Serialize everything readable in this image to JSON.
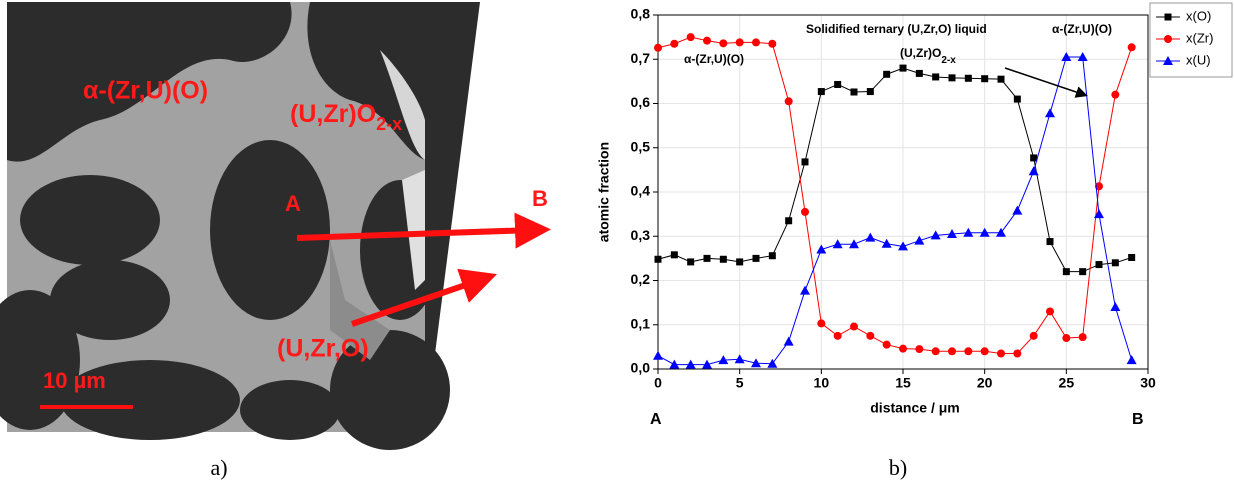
{
  "panel_a": {
    "labels": {
      "phase_alpha": "α-(Zr,U)(O)",
      "phase_oxide": {
        "main": "(U,Zr)O",
        "sub": "2-x"
      },
      "point_a": "A",
      "point_b": "B",
      "liquid": "(U,Zr,O)",
      "scale_bar": "10 µm"
    },
    "caption": "a)"
  },
  "chart_data": {
    "type": "line",
    "caption": "b)",
    "xlabel": "distance / μm",
    "ylabel": "atomic fraction",
    "x": [
      0,
      1,
      2,
      3,
      4,
      5,
      6,
      7,
      8,
      9,
      10,
      11,
      12,
      13,
      14,
      15,
      16,
      17,
      18,
      19,
      20,
      21,
      22,
      23,
      24,
      25,
      26,
      27,
      28,
      29
    ],
    "series": [
      {
        "name": "x(O)",
        "color": "#000000",
        "marker": "square",
        "values": [
          0.248,
          0.258,
          0.242,
          0.25,
          0.248,
          0.242,
          0.25,
          0.256,
          0.335,
          0.468,
          0.627,
          0.643,
          0.626,
          0.627,
          0.666,
          0.68,
          0.668,
          0.66,
          0.658,
          0.657,
          0.656,
          0.655,
          0.61,
          0.477,
          0.288,
          0.22,
          0.22,
          0.236,
          0.24,
          0.252
        ]
      },
      {
        "name": "x(Zr)",
        "color": "#ff0000",
        "marker": "circle",
        "values": [
          0.726,
          0.735,
          0.75,
          0.742,
          0.736,
          0.738,
          0.738,
          0.735,
          0.605,
          0.355,
          0.103,
          0.075,
          0.096,
          0.075,
          0.055,
          0.046,
          0.045,
          0.04,
          0.04,
          0.04,
          0.04,
          0.035,
          0.035,
          0.075,
          0.13,
          0.07,
          0.072,
          0.413,
          0.62,
          0.727
        ]
      },
      {
        "name": "x(U)",
        "color": "#0000ff",
        "marker": "triangle",
        "values": [
          0.03,
          0.01,
          0.01,
          0.01,
          0.02,
          0.022,
          0.013,
          0.012,
          0.062,
          0.177,
          0.27,
          0.282,
          0.282,
          0.297,
          0.283,
          0.277,
          0.29,
          0.302,
          0.305,
          0.308,
          0.308,
          0.308,
          0.358,
          0.447,
          0.578,
          0.705,
          0.705,
          0.35,
          0.14,
          0.02
        ]
      }
    ],
    "xlim": [
      0,
      30
    ],
    "xticks": [
      0,
      5,
      10,
      15,
      20,
      25,
      30
    ],
    "ylim": [
      0,
      0.8
    ],
    "yticks": [
      {
        "value": 0,
        "label": "0,0"
      },
      {
        "value": 0.1,
        "label": "0,1"
      },
      {
        "value": 0.2,
        "label": "0,2"
      },
      {
        "value": 0.3,
        "label": "0,3"
      },
      {
        "value": 0.4,
        "label": "0,4"
      },
      {
        "value": 0.5,
        "label": "0,5"
      },
      {
        "value": 0.6,
        "label": "0,6"
      },
      {
        "value": 0.7,
        "label": "0,7"
      },
      {
        "value": 0.8,
        "label": "0,8"
      }
    ],
    "grid": true,
    "legend": "outside-top-right",
    "annotations": {
      "left_phase": "α-(Zr,U)(O)",
      "liquid": "Solidified ternary (U,Zr,O) liquid",
      "oxide": {
        "main": "(U,Zr)O",
        "sub": "2-x"
      },
      "right_phase": "α-(Zr,U)(O)",
      "start": "A",
      "end": "B"
    }
  }
}
